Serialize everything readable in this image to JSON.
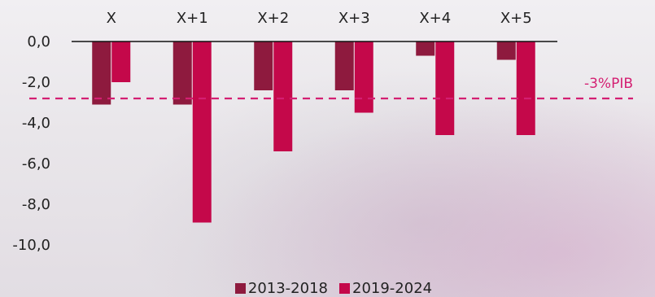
{
  "chart_data": {
    "type": "bar",
    "categories": [
      "X",
      "X+1",
      "X+2",
      "X+3",
      "X+4",
      "X+5"
    ],
    "series": [
      {
        "name": "2013-2018",
        "color": "#8e1a3e",
        "values": [
          -3.1,
          -3.1,
          -2.4,
          -2.4,
          -0.7,
          -0.9
        ]
      },
      {
        "name": "2019-2024",
        "color": "#c4084a",
        "values": [
          -2.0,
          -8.9,
          -5.4,
          -3.5,
          -4.6,
          -4.6
        ]
      }
    ],
    "ylim": [
      -10,
      0
    ],
    "yticks": [
      "0,0",
      "-2,0",
      "-4,0",
      "-6,0",
      "-8,0",
      "-10,0"
    ],
    "reference_line": {
      "value": -2.8,
      "label": "-3%PIB",
      "color": "#d41f72"
    },
    "legend_position": "bottom",
    "grid": false,
    "title": "",
    "xlabel": "",
    "ylabel": ""
  }
}
